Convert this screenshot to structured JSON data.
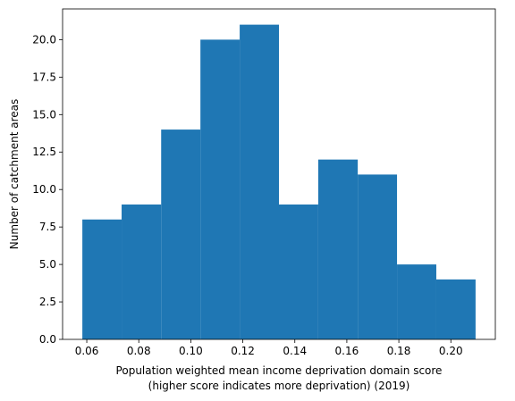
{
  "chart_data": {
    "type": "bar",
    "title": "",
    "xlabel_lines": [
      "Population weighted mean income deprivation domain score",
      "(higher score indicates more deprivation) (2019)"
    ],
    "ylabel": "Number of catchment areas",
    "bar_color": "#1f77b4",
    "bin_edges": [
      0.0583,
      0.0734,
      0.0886,
      0.1037,
      0.1188,
      0.1339,
      0.149,
      0.1642,
      0.1793,
      0.1944,
      0.2095
    ],
    "values": [
      8,
      9,
      14,
      20,
      21,
      9,
      12,
      11,
      5,
      4
    ],
    "xlim": [
      0.0507,
      0.2171
    ],
    "ylim": [
      0,
      22.05
    ],
    "xticks": [
      0.06,
      0.08,
      0.1,
      0.12,
      0.14,
      0.16,
      0.18,
      0.2
    ],
    "xtick_labels": [
      "0.06",
      "0.08",
      "0.10",
      "0.12",
      "0.14",
      "0.16",
      "0.18",
      "0.20"
    ],
    "yticks": [
      0,
      2.5,
      5,
      7.5,
      10,
      12.5,
      15,
      17.5,
      20
    ],
    "ytick_labels": [
      "0.0",
      "2.5",
      "5.0",
      "7.5",
      "10.0",
      "12.5",
      "15.0",
      "17.5",
      "20.0"
    ],
    "grid": false,
    "legend": "none"
  }
}
